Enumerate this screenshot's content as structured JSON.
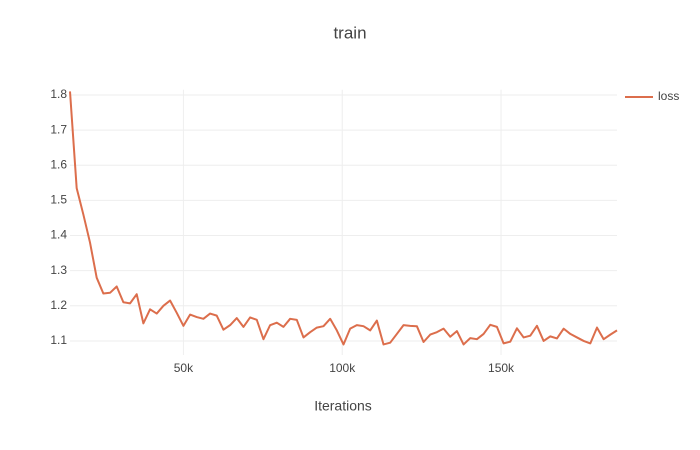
{
  "chart_data": {
    "type": "line",
    "title": "train",
    "x_label": "Iterations",
    "x": [
      14300,
      16400,
      18500,
      20600,
      22700,
      24800,
      26900,
      29000,
      31100,
      33200,
      35300,
      37400,
      39500,
      41600,
      43700,
      45800,
      47900,
      50000,
      52100,
      54200,
      56300,
      58400,
      60500,
      62600,
      64700,
      66800,
      68900,
      71000,
      73100,
      75200,
      77300,
      79400,
      81500,
      83600,
      85700,
      87800,
      89900,
      92000,
      94100,
      96200,
      98300,
      100400,
      102500,
      104600,
      106700,
      108800,
      110900,
      113000,
      115100,
      117200,
      119300,
      121400,
      123500,
      125600,
      127700,
      129800,
      131900,
      134000,
      136100,
      138200,
      140300,
      142400,
      144500,
      146600,
      148700,
      150800,
      152900,
      155000,
      157100,
      159200,
      161300,
      163400,
      165500,
      167600,
      169700,
      171800,
      173900,
      176000,
      178100,
      180200,
      182300,
      184400,
      186500
    ],
    "series": [
      {
        "name": "loss",
        "color": "#dc6e4c",
        "values": [
          1.81,
          1.535,
          1.46,
          1.38,
          1.28,
          1.235,
          1.237,
          1.255,
          1.21,
          1.207,
          1.233,
          1.15,
          1.19,
          1.178,
          1.2,
          1.215,
          1.18,
          1.143,
          1.175,
          1.168,
          1.163,
          1.178,
          1.172,
          1.132,
          1.145,
          1.165,
          1.14,
          1.167,
          1.16,
          1.105,
          1.145,
          1.152,
          1.14,
          1.163,
          1.16,
          1.11,
          1.125,
          1.138,
          1.142,
          1.163,
          1.13,
          1.09,
          1.135,
          1.145,
          1.142,
          1.13,
          1.158,
          1.09,
          1.095,
          1.12,
          1.145,
          1.143,
          1.142,
          1.097,
          1.118,
          1.125,
          1.135,
          1.112,
          1.128,
          1.09,
          1.108,
          1.105,
          1.12,
          1.146,
          1.14,
          1.093,
          1.098,
          1.136,
          1.11,
          1.115,
          1.143,
          1.1,
          1.113,
          1.107,
          1.135,
          1.12,
          1.11,
          1.1,
          1.093,
          1.138,
          1.105,
          1.118,
          1.13
        ]
      }
    ],
    "xlim": [
      14300,
      186500
    ],
    "xticks": [
      {
        "value": 50000,
        "label": "50k"
      },
      {
        "value": 100000,
        "label": "100k"
      },
      {
        "value": 150000,
        "label": "150k"
      }
    ],
    "ylim": [
      1.06,
      1.815
    ],
    "yticks": [
      1.1,
      1.2,
      1.3,
      1.4,
      1.5,
      1.6,
      1.7,
      1.8
    ],
    "grid": true
  }
}
